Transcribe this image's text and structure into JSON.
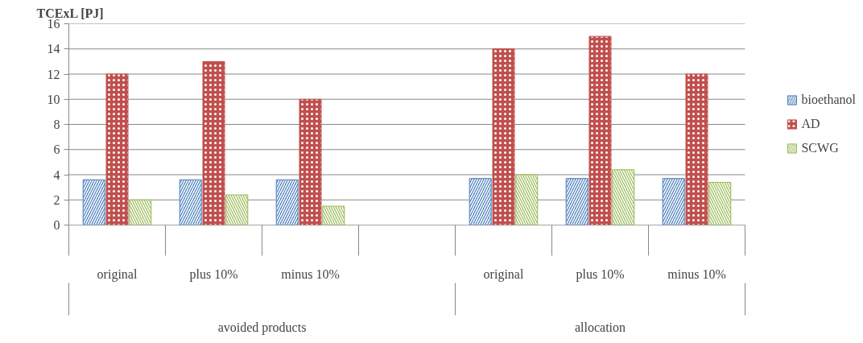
{
  "chart_data": {
    "type": "bar",
    "ylabel": "TCExL [PJ]",
    "categories": [
      "original",
      "plus 10%",
      "minus 10%",
      null,
      "original",
      "plus 10%",
      "minus 10%"
    ],
    "annotations": [
      "avoided products",
      "allocation"
    ],
    "series": [
      {
        "name": "bioethanol",
        "color": "#4f81bd",
        "values": [
          3.6,
          3.6,
          3.6,
          null,
          3.7,
          3.7,
          3.7
        ]
      },
      {
        "name": "AD",
        "color": "#c0504d",
        "values": [
          12,
          13,
          10,
          null,
          14,
          15,
          12
        ]
      },
      {
        "name": "SCWG",
        "color": "#9bbb59",
        "values": [
          2.0,
          2.4,
          1.5,
          null,
          4.0,
          4.4,
          3.4
        ]
      }
    ],
    "ylim": [
      0,
      16
    ],
    "yticks": [
      0,
      2,
      4,
      6,
      8,
      10,
      12,
      14,
      16
    ],
    "grid": "y",
    "legend": "right"
  }
}
